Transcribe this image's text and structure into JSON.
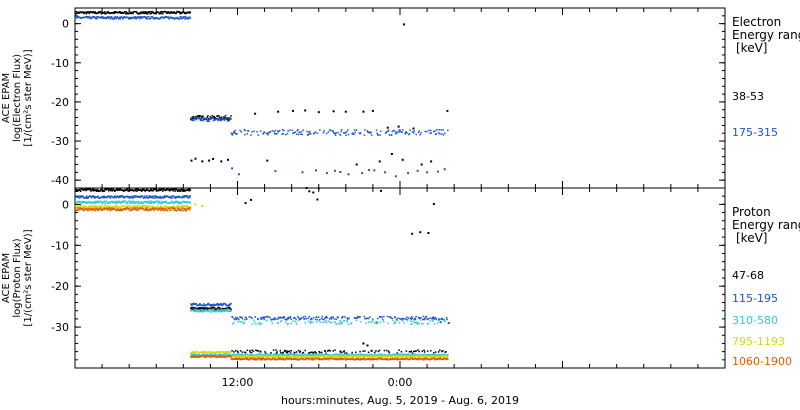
{
  "footer": {
    "xlabel": "hours:minutes, Aug.  5, 2019 - Aug.  6, 2019"
  },
  "x_ticks": [
    "12:00",
    "0:00"
  ],
  "panels": [
    {
      "ylabel": [
        "ACE EPAM",
        "log(Electron Flux)",
        "[1/(cm²s ster MeV)]"
      ],
      "legend_title": [
        "Electron",
        "Energy range",
        "[keV]"
      ],
      "entries": [
        {
          "label": "38-53",
          "color": "#000000"
        },
        {
          "label": "175-315",
          "color": "#1a56c8"
        }
      ]
    },
    {
      "ylabel": [
        "ACE EPAM",
        "log(Proton Flux)",
        "[1/(cm²s ster MeV)]"
      ],
      "legend_title": [
        "Proton",
        "Energy range",
        "[keV]"
      ],
      "entries": [
        {
          "label": "47-68",
          "color": "#000000"
        },
        {
          "label": "115-195",
          "color": "#1a56c8"
        },
        {
          "label": "310-580",
          "color": "#33c8e0"
        },
        {
          "label": "795-1193",
          "color": "#d8d800"
        },
        {
          "label": "1060-1900",
          "color": "#e05a00"
        }
      ]
    }
  ],
  "chart_data": [
    {
      "type": "scatter",
      "title": "Electron",
      "ylabel": "ACE EPAM log(Electron Flux) [1/(cm²s ster MeV)]",
      "xlabel": "hours:minutes, Aug.  5, 2019 - Aug.  6, 2019",
      "xlim": [
        0,
        48
      ],
      "ylim": [
        -42,
        4
      ],
      "y_ticks": [
        0,
        -10,
        -20,
        -30,
        -40
      ],
      "x_ticks": [
        {
          "x": 12,
          "label": "12:00"
        },
        {
          "x": 24,
          "label": "0:00"
        }
      ],
      "series": [
        {
          "name": "38-53",
          "color": "#000000",
          "segments": [
            {
              "x0": 0,
              "x1": 8.5,
              "y": 2.8,
              "noise": 0.3
            },
            {
              "x0": 8.5,
              "x1": 11.5,
              "y": -24.0,
              "noise": 0.5
            }
          ],
          "points": [
            [
              8.6,
              -35
            ],
            [
              8.9,
              -34.5
            ],
            [
              9.4,
              -35.2
            ],
            [
              9.9,
              -35
            ],
            [
              10.2,
              -34.6
            ],
            [
              10.8,
              -35.2
            ],
            [
              11.3,
              -34.8
            ],
            [
              13.3,
              -23
            ],
            [
              14.2,
              -35
            ],
            [
              15.0,
              -22.5
            ],
            [
              16.1,
              -22.3
            ],
            [
              17.0,
              -22.2
            ],
            [
              18.0,
              -22.6
            ],
            [
              19.1,
              -22.4
            ],
            [
              20.0,
              -22.5
            ],
            [
              21.3,
              -22.5
            ],
            [
              22.0,
              -22.3
            ],
            [
              23.1,
              -26.6
            ],
            [
              23.9,
              -26.3
            ],
            [
              25.0,
              -26.8
            ],
            [
              20.8,
              -36
            ],
            [
              22.5,
              -35.2
            ],
            [
              23.4,
              -33.3
            ],
            [
              24.2,
              -34.8
            ],
            [
              25.6,
              -36
            ],
            [
              26.3,
              -35.2
            ],
            [
              27.5,
              -22.3
            ],
            [
              24.3,
              -0.2
            ]
          ]
        },
        {
          "name": "175-315",
          "color": "#1a56c8",
          "segments": [
            {
              "x0": 0,
              "x1": 8.5,
              "y": 1.5,
              "noise": 0.3
            },
            {
              "x0": 8.5,
              "x1": 11.5,
              "y": -24.5,
              "noise": 0.5
            },
            {
              "x0": 11.5,
              "x1": 27.5,
              "y": -27.8,
              "noise": 0.7,
              "sparse": 0.55
            }
          ],
          "points": [
            [
              11.6,
              -37
            ],
            [
              12.1,
              -38.5
            ],
            [
              14.8,
              -37.7
            ],
            [
              16.8,
              -38
            ],
            [
              17.8,
              -37.5
            ],
            [
              18.6,
              -38.2
            ],
            [
              19.2,
              -37.6
            ],
            [
              20.2,
              -38.5
            ],
            [
              21.2,
              -38.2
            ],
            [
              22.1,
              -37.5
            ],
            [
              22.9,
              -38
            ],
            [
              23.7,
              -39
            ],
            [
              24.6,
              -38.2
            ],
            [
              25.3,
              -37.6
            ],
            [
              26.0,
              -38
            ],
            [
              26.8,
              -37.8
            ],
            [
              27.3,
              -37.2
            ],
            [
              19.6,
              -37.9
            ],
            [
              21.7,
              -37.4
            ]
          ]
        }
      ]
    },
    {
      "type": "scatter",
      "title": "Proton",
      "ylabel": "ACE EPAM log(Proton Flux) [1/(cm²s ster MeV)]",
      "xlabel": "hours:minutes, Aug.  5, 2019 - Aug.  6, 2019",
      "xlim": [
        0,
        48
      ],
      "ylim": [
        -40,
        4
      ],
      "y_ticks": [
        0,
        -10,
        -20,
        -30
      ],
      "x_ticks": [
        {
          "x": 12,
          "label": "12:00"
        },
        {
          "x": 24,
          "label": "0:00"
        }
      ],
      "series": [
        {
          "name": "47-68",
          "color": "#000000",
          "segments": [
            {
              "x0": 0,
              "x1": 8.5,
              "y": 3.5,
              "noise": 0.3
            },
            {
              "x0": 8.5,
              "x1": 11.5,
              "y": -25.5,
              "noise": 0.3
            },
            {
              "x0": 11.5,
              "x1": 27.5,
              "y": -36.0,
              "noise": 0.4,
              "sparse": 0.3
            }
          ],
          "points": [
            [
              8.6,
              -25.5
            ],
            [
              9.3,
              -26
            ],
            [
              10.3,
              -25.8
            ],
            [
              11.0,
              -25.6
            ],
            [
              13.7,
              -36
            ],
            [
              15.5,
              -35.8
            ],
            [
              17.3,
              -36.3
            ],
            [
              19.6,
              -36
            ],
            [
              21.9,
              -35.8
            ],
            [
              17.1,
              4.0
            ],
            [
              17.3,
              3.2
            ],
            [
              17.6,
              2.9
            ],
            [
              17.9,
              1.2
            ],
            [
              18.0,
              3.9
            ],
            [
              22.6,
              3.3
            ],
            [
              24.9,
              -7.2
            ],
            [
              25.5,
              -6.8
            ],
            [
              26.1,
              -7.0
            ],
            [
              26.5,
              0.1
            ],
            [
              21.3,
              -34
            ],
            [
              21.6,
              -34.5
            ],
            [
              12.6,
              0.3
            ],
            [
              13.0,
              1.1
            ]
          ]
        },
        {
          "name": "115-195",
          "color": "#1a56c8",
          "segments": [
            {
              "x0": 0,
              "x1": 8.5,
              "y": 1.8,
              "noise": 0.3
            },
            {
              "x0": 8.5,
              "x1": 11.5,
              "y": -24.5,
              "noise": 0.3
            },
            {
              "x0": 11.5,
              "x1": 27.5,
              "y": -27.8,
              "noise": 0.4,
              "sparse": 0.55
            }
          ],
          "points": [
            [
              27.6,
              -29.0
            ],
            [
              27.0,
              -28.8
            ],
            [
              22.3,
              -28.9
            ]
          ]
        },
        {
          "name": "310-580",
          "color": "#33c8e0",
          "segments": [
            {
              "x0": 0,
              "x1": 8.5,
              "y": 0.5,
              "noise": 0.3
            },
            {
              "x0": 8.5,
              "x1": 11.5,
              "y": -26.0,
              "noise": 0.3
            },
            {
              "x0": 11.5,
              "x1": 27.5,
              "y": -28.8,
              "noise": 0.5,
              "sparse": 0.3
            },
            {
              "x0": 8.5,
              "x1": 27.5,
              "y": -36.8,
              "noise": 0.2
            }
          ],
          "points": []
        },
        {
          "name": "795-1193",
          "color": "#d8d800",
          "segments": [
            {
              "x0": 0,
              "x1": 8.5,
              "y": -0.6,
              "noise": 0.3
            },
            {
              "x0": 8.5,
              "x1": 11.5,
              "y": -36.2,
              "noise": 0.2
            },
            {
              "x0": 11.5,
              "x1": 27.5,
              "y": -37.2,
              "noise": 0.2
            }
          ],
          "points": [
            [
              8.9,
              0.0
            ],
            [
              9.4,
              -0.4
            ]
          ]
        },
        {
          "name": "1060-1900",
          "color": "#e05a00",
          "segments": [
            {
              "x0": 0,
              "x1": 8.5,
              "y": -1.2,
              "noise": 0.35
            },
            {
              "x0": 8.5,
              "x1": 11.5,
              "y": -37.2,
              "noise": 0.2
            },
            {
              "x0": 11.5,
              "x1": 27.5,
              "y": -37.8,
              "noise": 0.2
            }
          ],
          "points": []
        }
      ]
    }
  ]
}
